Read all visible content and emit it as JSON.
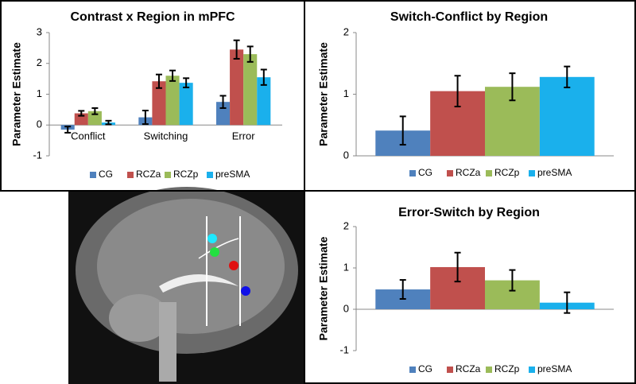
{
  "chart_data": [
    {
      "type": "bar",
      "title": "Contrast x Region in mPFC",
      "y_label": "Parameter Estimate",
      "categories": [
        "Conflict",
        "Switching",
        "Error"
      ],
      "ylim": [
        -1,
        3
      ],
      "yticks": [
        -1,
        0,
        1,
        2,
        3
      ],
      "series": [
        {
          "name": "CG",
          "color": "#4f81bd",
          "values": [
            -0.15,
            0.25,
            0.75
          ],
          "errors": [
            0.1,
            0.22,
            0.2
          ]
        },
        {
          "name": "RCZa",
          "color": "#c0504d",
          "values": [
            0.38,
            1.42,
            2.45
          ],
          "errors": [
            0.08,
            0.22,
            0.3
          ]
        },
        {
          "name": "RCZp",
          "color": "#9bbb59",
          "values": [
            0.45,
            1.6,
            2.3
          ],
          "errors": [
            0.1,
            0.17,
            0.25
          ]
        },
        {
          "name": "preSMA",
          "color": "#1ab0ec",
          "values": [
            0.08,
            1.37,
            1.55
          ],
          "errors": [
            0.06,
            0.15,
            0.25
          ]
        }
      ]
    },
    {
      "type": "bar",
      "title": "Switch-Conflict by Region",
      "y_label": "Parameter Estimate",
      "categories": [
        null
      ],
      "ylim": [
        0,
        2
      ],
      "yticks": [
        0,
        1,
        2
      ],
      "series": [
        {
          "name": "CG",
          "color": "#4f81bd",
          "values": [
            0.41
          ],
          "errors": [
            0.23
          ]
        },
        {
          "name": "RCZa",
          "color": "#c0504d",
          "values": [
            1.05
          ],
          "errors": [
            0.25
          ]
        },
        {
          "name": "RCZp",
          "color": "#9bbb59",
          "values": [
            1.12
          ],
          "errors": [
            0.22
          ]
        },
        {
          "name": "preSMA",
          "color": "#1ab0ec",
          "values": [
            1.28
          ],
          "errors": [
            0.17
          ]
        }
      ]
    },
    {
      "type": "bar",
      "title": "Error-Switch by Region",
      "y_label": "Parameter Estimate",
      "categories": [
        null
      ],
      "ylim": [
        -1,
        2
      ],
      "yticks": [
        -1,
        0,
        1,
        2
      ],
      "series": [
        {
          "name": "CG",
          "color": "#4f81bd",
          "values": [
            0.48
          ],
          "errors": [
            0.23
          ]
        },
        {
          "name": "RCZa",
          "color": "#c0504d",
          "values": [
            1.02
          ],
          "errors": [
            0.35
          ]
        },
        {
          "name": "RCZp",
          "color": "#9bbb59",
          "values": [
            0.7
          ],
          "errors": [
            0.25
          ]
        },
        {
          "name": "preSMA",
          "color": "#1ab0ec",
          "values": [
            0.16
          ],
          "errors": [
            0.25
          ]
        }
      ]
    }
  ]
}
